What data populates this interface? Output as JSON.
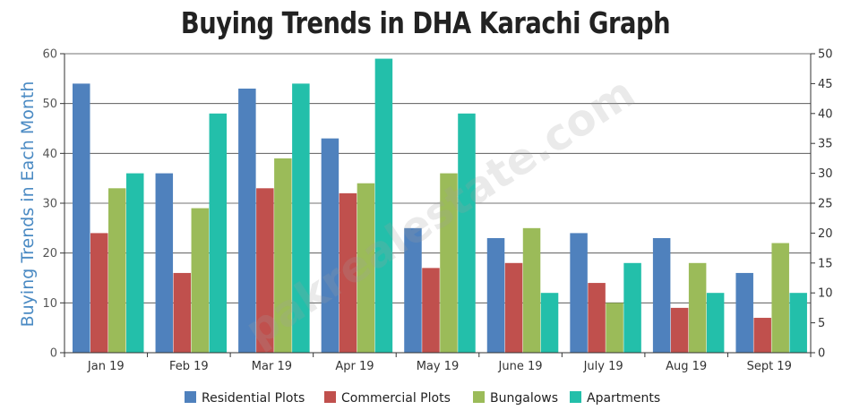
{
  "chart_data": {
    "type": "bar",
    "title": "Buying Trends in DHA Karachi Graph",
    "ylabel": "Buying Trends in Each Month",
    "ylim": [
      0,
      60
    ],
    "y2lim": [
      0,
      50
    ],
    "yticks": [
      "0",
      "10",
      "20",
      "30",
      "40",
      "50",
      "60"
    ],
    "y2ticks": [
      "0",
      "5",
      "10",
      "15",
      "20",
      "25",
      "30",
      "35",
      "40",
      "45",
      "50"
    ],
    "categories": [
      "Jan 19",
      "Feb 19",
      "Mar 19",
      "Apr 19",
      "May 19",
      "June 19",
      "July 19",
      "Aug 19",
      "Sept 19"
    ],
    "series": [
      {
        "name": "Residential Plots",
        "color": "#4f81bd",
        "values": [
          54,
          36,
          53,
          43,
          25,
          23,
          24,
          23,
          16
        ]
      },
      {
        "name": "Commercial Plots",
        "color": "#c0504d",
        "values": [
          24,
          16,
          33,
          32,
          17,
          18,
          14,
          9,
          7
        ]
      },
      {
        "name": "Bungalows",
        "color": "#9bbb59",
        "values": [
          33,
          29,
          39,
          34,
          36,
          25,
          10,
          18,
          22
        ]
      },
      {
        "name": "Apartments",
        "color": "#23bfaa",
        "values": [
          36,
          48,
          54,
          59,
          48,
          12,
          18,
          12,
          12
        ]
      }
    ],
    "legend_position": "bottom",
    "grid": true,
    "watermark": "pakrealestate.com"
  }
}
